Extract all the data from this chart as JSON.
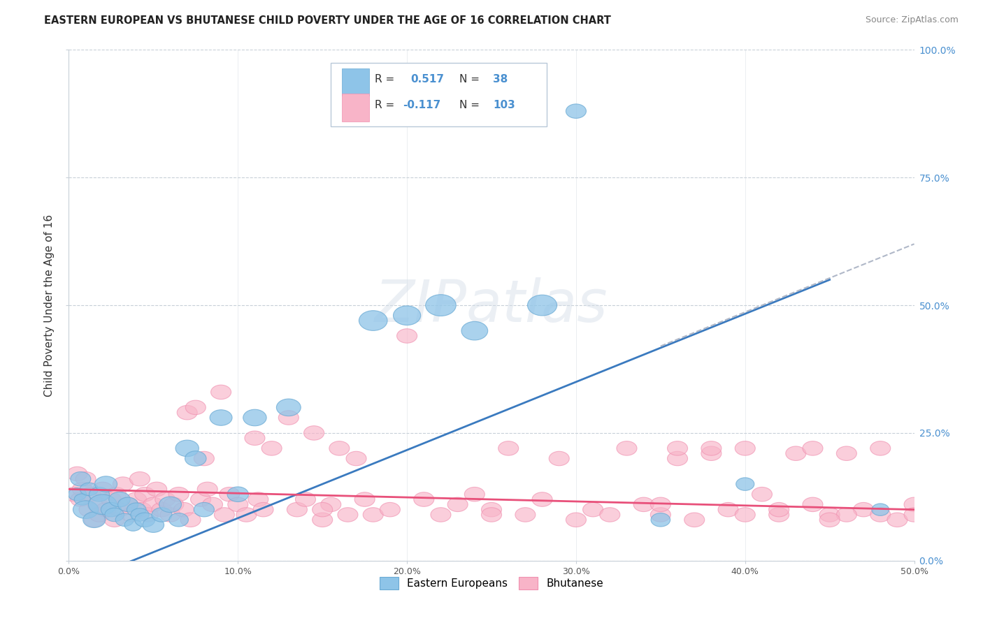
{
  "title": "EASTERN EUROPEAN VS BHUTANESE CHILD POVERTY UNDER THE AGE OF 16 CORRELATION CHART",
  "source": "Source: ZipAtlas.com",
  "ylabel": "Child Poverty Under the Age of 16",
  "xlim": [
    0.0,
    0.5
  ],
  "ylim": [
    0.0,
    1.0
  ],
  "blue_color": "#8ec4e8",
  "blue_edge_color": "#6aaad4",
  "pink_color": "#f8b4c8",
  "pink_edge_color": "#f090b0",
  "blue_line_color": "#3a7abf",
  "pink_line_color": "#e8507a",
  "dash_line_color": "#b0b8c8",
  "background_color": "#ffffff",
  "grid_color": "#c8d0d8",
  "watermark": "ZIPatlas",
  "right_tick_color": "#4a90d0",
  "blue_scatter": [
    [
      0.005,
      0.13
    ],
    [
      0.007,
      0.16
    ],
    [
      0.008,
      0.12
    ],
    [
      0.01,
      0.1
    ],
    [
      0.012,
      0.14
    ],
    [
      0.015,
      0.08
    ],
    [
      0.018,
      0.13
    ],
    [
      0.02,
      0.11
    ],
    [
      0.022,
      0.15
    ],
    [
      0.025,
      0.1
    ],
    [
      0.027,
      0.09
    ],
    [
      0.03,
      0.12
    ],
    [
      0.033,
      0.08
    ],
    [
      0.035,
      0.11
    ],
    [
      0.038,
      0.07
    ],
    [
      0.04,
      0.1
    ],
    [
      0.042,
      0.09
    ],
    [
      0.045,
      0.08
    ],
    [
      0.05,
      0.07
    ],
    [
      0.055,
      0.09
    ],
    [
      0.06,
      0.11
    ],
    [
      0.065,
      0.08
    ],
    [
      0.07,
      0.22
    ],
    [
      0.075,
      0.2
    ],
    [
      0.08,
      0.1
    ],
    [
      0.09,
      0.28
    ],
    [
      0.1,
      0.13
    ],
    [
      0.11,
      0.28
    ],
    [
      0.13,
      0.3
    ],
    [
      0.18,
      0.47
    ],
    [
      0.2,
      0.48
    ],
    [
      0.22,
      0.5
    ],
    [
      0.24,
      0.45
    ],
    [
      0.28,
      0.5
    ],
    [
      0.3,
      0.88
    ],
    [
      0.35,
      0.08
    ],
    [
      0.4,
      0.15
    ],
    [
      0.48,
      0.1
    ]
  ],
  "blue_sizes": [
    180,
    200,
    160,
    250,
    180,
    220,
    200,
    280,
    220,
    200,
    190,
    210,
    180,
    200,
    170,
    190,
    180,
    200,
    210,
    200,
    220,
    190,
    230,
    210,
    200,
    220,
    210,
    230,
    240,
    280,
    270,
    300,
    260,
    290,
    200,
    190,
    180,
    170
  ],
  "pink_scatter": [
    [
      0.003,
      0.13
    ],
    [
      0.005,
      0.17
    ],
    [
      0.007,
      0.12
    ],
    [
      0.008,
      0.14
    ],
    [
      0.01,
      0.16
    ],
    [
      0.012,
      0.1
    ],
    [
      0.013,
      0.13
    ],
    [
      0.015,
      0.08
    ],
    [
      0.017,
      0.11
    ],
    [
      0.018,
      0.09
    ],
    [
      0.02,
      0.14
    ],
    [
      0.022,
      0.1
    ],
    [
      0.025,
      0.12
    ],
    [
      0.027,
      0.08
    ],
    [
      0.028,
      0.13
    ],
    [
      0.03,
      0.1
    ],
    [
      0.032,
      0.15
    ],
    [
      0.035,
      0.11
    ],
    [
      0.037,
      0.09
    ],
    [
      0.04,
      0.12
    ],
    [
      0.042,
      0.16
    ],
    [
      0.043,
      0.1
    ],
    [
      0.045,
      0.13
    ],
    [
      0.047,
      0.09
    ],
    [
      0.05,
      0.11
    ],
    [
      0.052,
      0.14
    ],
    [
      0.055,
      0.1
    ],
    [
      0.057,
      0.12
    ],
    [
      0.06,
      0.09
    ],
    [
      0.062,
      0.11
    ],
    [
      0.065,
      0.13
    ],
    [
      0.068,
      0.1
    ],
    [
      0.07,
      0.29
    ],
    [
      0.072,
      0.08
    ],
    [
      0.075,
      0.3
    ],
    [
      0.078,
      0.12
    ],
    [
      0.08,
      0.2
    ],
    [
      0.082,
      0.14
    ],
    [
      0.085,
      0.11
    ],
    [
      0.09,
      0.33
    ],
    [
      0.092,
      0.09
    ],
    [
      0.095,
      0.13
    ],
    [
      0.1,
      0.11
    ],
    [
      0.105,
      0.09
    ],
    [
      0.11,
      0.24
    ],
    [
      0.112,
      0.12
    ],
    [
      0.115,
      0.1
    ],
    [
      0.12,
      0.22
    ],
    [
      0.13,
      0.28
    ],
    [
      0.135,
      0.1
    ],
    [
      0.14,
      0.12
    ],
    [
      0.145,
      0.25
    ],
    [
      0.15,
      0.08
    ],
    [
      0.155,
      0.11
    ],
    [
      0.16,
      0.22
    ],
    [
      0.165,
      0.09
    ],
    [
      0.17,
      0.2
    ],
    [
      0.175,
      0.12
    ],
    [
      0.18,
      0.09
    ],
    [
      0.19,
      0.1
    ],
    [
      0.2,
      0.44
    ],
    [
      0.21,
      0.12
    ],
    [
      0.22,
      0.09
    ],
    [
      0.23,
      0.11
    ],
    [
      0.24,
      0.13
    ],
    [
      0.25,
      0.1
    ],
    [
      0.26,
      0.22
    ],
    [
      0.27,
      0.09
    ],
    [
      0.28,
      0.12
    ],
    [
      0.29,
      0.2
    ],
    [
      0.3,
      0.08
    ],
    [
      0.31,
      0.1
    ],
    [
      0.32,
      0.09
    ],
    [
      0.33,
      0.22
    ],
    [
      0.34,
      0.11
    ],
    [
      0.35,
      0.09
    ],
    [
      0.36,
      0.2
    ],
    [
      0.37,
      0.08
    ],
    [
      0.38,
      0.21
    ],
    [
      0.39,
      0.1
    ],
    [
      0.4,
      0.09
    ],
    [
      0.41,
      0.13
    ],
    [
      0.42,
      0.09
    ],
    [
      0.43,
      0.21
    ],
    [
      0.44,
      0.11
    ],
    [
      0.45,
      0.09
    ],
    [
      0.46,
      0.21
    ],
    [
      0.47,
      0.1
    ],
    [
      0.48,
      0.09
    ],
    [
      0.49,
      0.08
    ],
    [
      0.5,
      0.11
    ],
    [
      0.36,
      0.22
    ],
    [
      0.38,
      0.22
    ],
    [
      0.4,
      0.22
    ],
    [
      0.42,
      0.1
    ],
    [
      0.44,
      0.22
    ],
    [
      0.46,
      0.09
    ],
    [
      0.48,
      0.22
    ],
    [
      0.5,
      0.09
    ],
    [
      0.15,
      0.1
    ],
    [
      0.25,
      0.09
    ],
    [
      0.35,
      0.11
    ],
    [
      0.45,
      0.08
    ]
  ],
  "pink_sizes": [
    180,
    200,
    160,
    180,
    200,
    170,
    190,
    180,
    200,
    170,
    190,
    180,
    200,
    170,
    190,
    180,
    210,
    190,
    180,
    200,
    210,
    180,
    200,
    170,
    190,
    200,
    180,
    190,
    170,
    180,
    200,
    180,
    230,
    170,
    220,
    190,
    210,
    190,
    180,
    230,
    170,
    190,
    180,
    170,
    220,
    190,
    180,
    210,
    230,
    180,
    190,
    220,
    170,
    180,
    210,
    170,
    200,
    190,
    170,
    180,
    240,
    190,
    170,
    180,
    190,
    170,
    200,
    170,
    190,
    210,
    170,
    180,
    170,
    200,
    180,
    170,
    200,
    170,
    190,
    180,
    170,
    180,
    170,
    200,
    180,
    170,
    190,
    200,
    180,
    170,
    190,
    200,
    210,
    190,
    180,
    200,
    170,
    190,
    170,
    180,
    190,
    170,
    180
  ],
  "blue_line": [
    0.0,
    -0.05,
    0.45,
    0.55
  ],
  "dash_line": [
    0.35,
    0.42,
    0.5,
    0.62
  ],
  "pink_line": [
    0.0,
    0.14,
    0.5,
    0.1
  ]
}
